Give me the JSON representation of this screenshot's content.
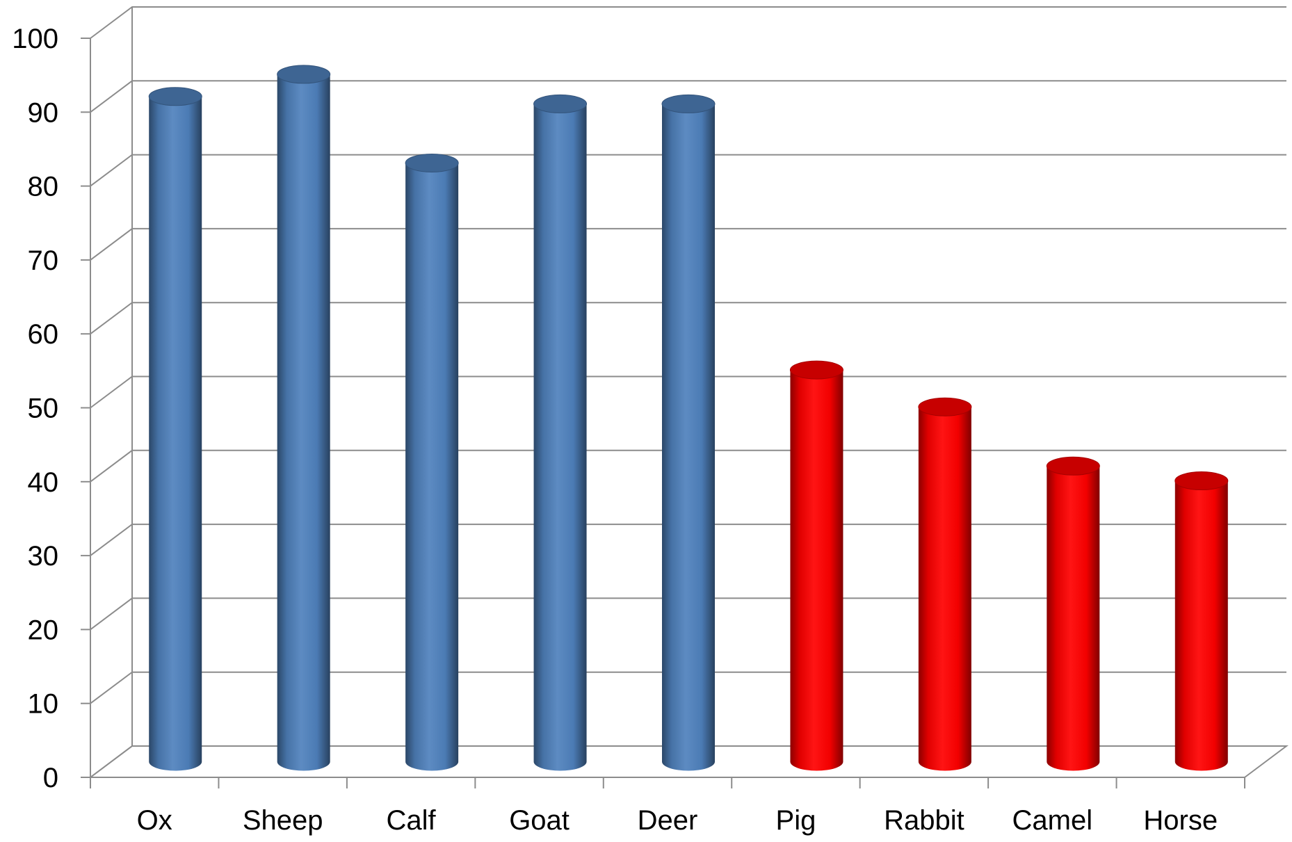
{
  "chart_data": {
    "type": "bar",
    "style": "3d-cylinder",
    "title": "",
    "xlabel": "",
    "ylabel": "",
    "ylim": [
      0,
      100
    ],
    "yticks": [
      "0",
      "10",
      "20",
      "30",
      "40",
      "50",
      "60",
      "70",
      "80",
      "90",
      "100"
    ],
    "grid": true,
    "legend": "none",
    "categories": [
      "Ox",
      "Sheep",
      "Calf",
      "Goat",
      "Deer",
      "Pig",
      "Rabbit",
      "Camel",
      "Horse"
    ],
    "values": [
      90,
      93,
      81,
      89,
      89,
      53,
      48,
      40,
      38
    ],
    "colors": [
      "#4f81bd",
      "#4f81bd",
      "#4f81bd",
      "#4f81bd",
      "#4f81bd",
      "#ff0000",
      "#ff0000",
      "#ff0000",
      "#ff0000"
    ]
  }
}
